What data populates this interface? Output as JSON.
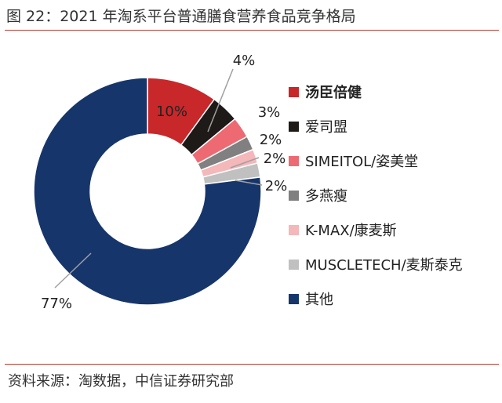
{
  "title": "图 22：2021 年淘系平台普通膳食营养食品竞争格局",
  "source": "资料来源：淘数据，中信证券研究部",
  "chart_data": {
    "type": "pie",
    "variant": "donut",
    "legend_position": "right",
    "slices": [
      {
        "name": "汤臣倍健",
        "value": 10,
        "label": "10%",
        "color": "#c8282a"
      },
      {
        "name": "爱司盟",
        "value": 4,
        "label": "4%",
        "color": "#1e1a18"
      },
      {
        "name": "SIMEITOL/姿美堂",
        "value": 3,
        "label": "3%",
        "color": "#ee6a73"
      },
      {
        "name": "多燕瘦",
        "value": 2,
        "label": "2%",
        "color": "#808080"
      },
      {
        "name": "K-MAX/康麦斯",
        "value": 2,
        "label": "2%",
        "color": "#f4b7ba"
      },
      {
        "name": "MUSCLETECH/麦斯泰克",
        "value": 2,
        "label": "2%",
        "color": "#c0c0c0"
      },
      {
        "name": "其他",
        "value": 77,
        "label": "77%",
        "color": "#16356b"
      }
    ]
  }
}
